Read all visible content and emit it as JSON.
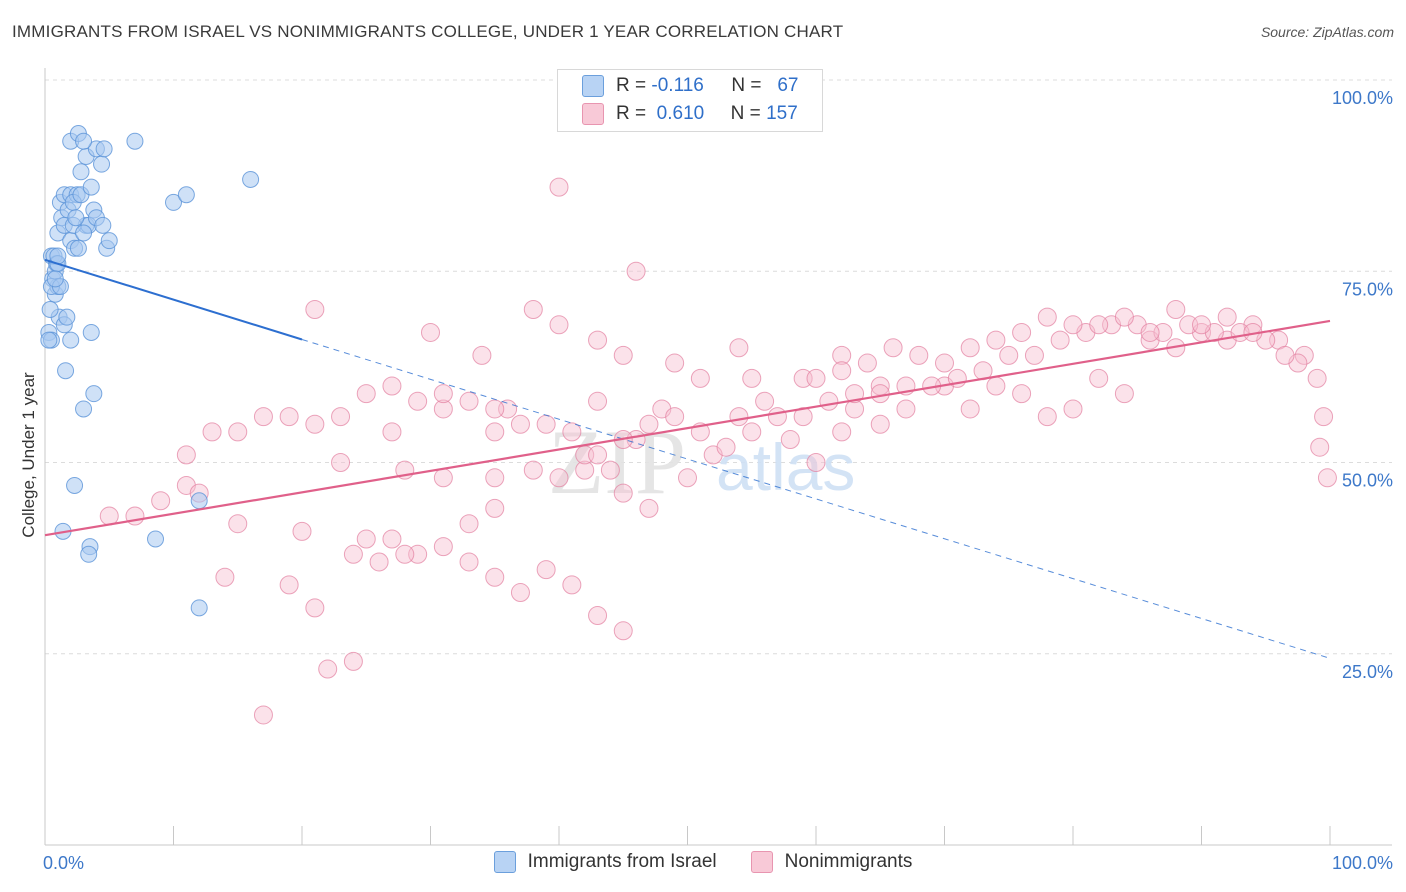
{
  "title": "IMMIGRANTS FROM ISRAEL VS NONIMMIGRANTS COLLEGE, UNDER 1 YEAR CORRELATION CHART",
  "source": "Source: ZipAtlas.com",
  "watermark": {
    "zip": "ZIP",
    "atlas": "atlas"
  },
  "legend_top": {
    "r_label": "R =",
    "n_label": "N =",
    "rows": [
      {
        "r": "-0.116",
        "n": "67"
      },
      {
        "r": "0.610",
        "n": "157"
      }
    ]
  },
  "colors": {
    "blue_fill": "#a8c8f0",
    "blue_stroke": "#5b93d8",
    "blue_line": "#2d6fd0",
    "pink_fill": "#f6bfd0",
    "pink_stroke": "#e27fa0",
    "pink_line": "#e0608a",
    "tick_label": "#3d78c9",
    "grid": "#dcdcdc"
  },
  "chart_data": {
    "type": "scatter",
    "ylabel": "College, Under 1 year",
    "x_tick_labels": [
      "0.0%",
      "100.0%"
    ],
    "y_tick_labels": [
      "100.0%",
      "75.0%",
      "50.0%",
      "25.0%"
    ],
    "xlim": [
      0,
      100
    ],
    "ylim": [
      0,
      100
    ],
    "series": [
      {
        "name": "Immigrants from Israel",
        "trend": {
          "x0": 0,
          "y0": 76.5,
          "x_solid_end": 20,
          "x1": 100,
          "y1": 24.4
        },
        "points": [
          [
            0.3,
            67
          ],
          [
            0.5,
            66
          ],
          [
            0.6,
            74
          ],
          [
            0.8,
            75
          ],
          [
            0.5,
            77
          ],
          [
            0.9,
            76
          ],
          [
            0.7,
            77
          ],
          [
            1,
            80
          ],
          [
            1.2,
            84
          ],
          [
            1.3,
            82
          ],
          [
            1.5,
            85
          ],
          [
            2,
            85
          ],
          [
            2.5,
            85
          ],
          [
            1.8,
            83
          ],
          [
            2.2,
            84
          ],
          [
            2.8,
            85
          ],
          [
            1.5,
            81
          ],
          [
            2,
            79
          ],
          [
            2.3,
            78
          ],
          [
            2.6,
            78
          ],
          [
            3.2,
            81
          ],
          [
            3.4,
            81
          ],
          [
            3.8,
            83
          ],
          [
            1,
            76
          ],
          [
            0.8,
            72
          ],
          [
            1,
            73
          ],
          [
            1.1,
            69
          ],
          [
            1.5,
            68
          ],
          [
            1.7,
            69
          ],
          [
            2,
            66
          ],
          [
            2.8,
            88
          ],
          [
            3.2,
            90
          ],
          [
            4,
            91
          ],
          [
            4.4,
            89
          ],
          [
            4.6,
            91
          ],
          [
            3.6,
            86
          ],
          [
            4.8,
            78
          ],
          [
            5,
            79
          ],
          [
            7,
            92
          ],
          [
            10,
            84
          ],
          [
            11,
            85
          ],
          [
            16,
            87
          ],
          [
            3.6,
            67
          ],
          [
            1.6,
            62
          ],
          [
            3,
            57
          ],
          [
            3.8,
            59
          ],
          [
            2.3,
            47
          ],
          [
            1.4,
            41
          ],
          [
            3.5,
            39
          ],
          [
            3.4,
            38
          ],
          [
            8.6,
            40
          ],
          [
            12,
            45
          ],
          [
            12,
            31
          ],
          [
            2,
            92
          ],
          [
            2.6,
            93
          ],
          [
            3,
            92
          ],
          [
            0.4,
            70
          ],
          [
            0.3,
            66
          ],
          [
            0.5,
            73
          ],
          [
            1,
            77
          ],
          [
            2.2,
            81
          ],
          [
            2.4,
            82
          ],
          [
            4,
            82
          ],
          [
            4.5,
            81
          ],
          [
            3,
            80
          ],
          [
            1.2,
            73
          ],
          [
            0.8,
            74
          ]
        ]
      },
      {
        "name": "Nonimmigrants",
        "trend": {
          "x0": 0,
          "y0": 40.5,
          "x1": 100,
          "y1": 68.5
        },
        "points": [
          [
            40,
            86
          ],
          [
            46,
            75
          ],
          [
            21,
            70
          ],
          [
            30,
            67
          ],
          [
            38,
            70
          ],
          [
            40,
            68
          ],
          [
            34,
            64
          ],
          [
            43,
            66
          ],
          [
            45,
            64
          ],
          [
            49,
            63
          ],
          [
            51,
            61
          ],
          [
            54,
            65
          ],
          [
            55,
            61
          ],
          [
            59,
            61
          ],
          [
            62,
            64
          ],
          [
            65,
            60
          ],
          [
            48,
            57
          ],
          [
            46,
            53
          ],
          [
            43,
            58
          ],
          [
            42,
            49
          ],
          [
            36,
            57
          ],
          [
            35,
            54
          ],
          [
            31,
            57
          ],
          [
            27,
            54
          ],
          [
            23,
            50
          ],
          [
            28,
            49
          ],
          [
            31,
            48
          ],
          [
            35,
            48
          ],
          [
            38,
            49
          ],
          [
            40,
            48
          ],
          [
            42,
            51
          ],
          [
            44,
            49
          ],
          [
            45,
            46
          ],
          [
            47,
            44
          ],
          [
            50,
            48
          ],
          [
            52,
            51
          ],
          [
            54,
            56
          ],
          [
            56,
            58
          ],
          [
            58,
            53
          ],
          [
            60,
            50
          ],
          [
            62,
            54
          ],
          [
            63,
            57
          ],
          [
            65,
            55
          ],
          [
            67,
            60
          ],
          [
            70,
            60
          ],
          [
            72,
            57
          ],
          [
            74,
            60
          ],
          [
            76,
            59
          ],
          [
            78,
            56
          ],
          [
            80,
            57
          ],
          [
            82,
            61
          ],
          [
            84,
            59
          ],
          [
            86,
            66
          ],
          [
            88,
            65
          ],
          [
            90,
            67
          ],
          [
            92,
            66
          ],
          [
            94,
            68
          ],
          [
            96,
            66
          ],
          [
            98,
            64
          ],
          [
            99,
            61
          ],
          [
            99.5,
            56
          ],
          [
            99.2,
            52
          ],
          [
            99.8,
            48
          ],
          [
            97.5,
            63
          ],
          [
            96.5,
            64
          ],
          [
            95,
            66
          ],
          [
            93,
            67
          ],
          [
            91,
            67
          ],
          [
            89,
            68
          ],
          [
            87,
            67
          ],
          [
            85,
            68
          ],
          [
            83,
            68
          ],
          [
            81,
            67
          ],
          [
            79,
            66
          ],
          [
            77,
            64
          ],
          [
            75,
            64
          ],
          [
            73,
            62
          ],
          [
            71,
            61
          ],
          [
            69,
            60
          ],
          [
            67,
            57
          ],
          [
            65,
            59
          ],
          [
            63,
            59
          ],
          [
            61,
            58
          ],
          [
            59,
            56
          ],
          [
            57,
            56
          ],
          [
            55,
            54
          ],
          [
            53,
            52
          ],
          [
            51,
            54
          ],
          [
            49,
            56
          ],
          [
            47,
            55
          ],
          [
            45,
            53
          ],
          [
            43,
            51
          ],
          [
            41,
            54
          ],
          [
            39,
            55
          ],
          [
            37,
            55
          ],
          [
            35,
            57
          ],
          [
            33,
            58
          ],
          [
            31,
            59
          ],
          [
            29,
            58
          ],
          [
            27,
            60
          ],
          [
            25,
            59
          ],
          [
            23,
            56
          ],
          [
            21,
            55
          ],
          [
            19,
            56
          ],
          [
            17,
            56
          ],
          [
            15,
            54
          ],
          [
            13,
            54
          ],
          [
            11,
            51
          ],
          [
            9,
            45
          ],
          [
            7,
            43
          ],
          [
            5,
            43
          ],
          [
            25,
            40
          ],
          [
            27,
            40
          ],
          [
            29,
            38
          ],
          [
            31,
            39
          ],
          [
            33,
            37
          ],
          [
            35,
            35
          ],
          [
            37,
            33
          ],
          [
            39,
            36
          ],
          [
            41,
            34
          ],
          [
            43,
            30
          ],
          [
            45,
            28
          ],
          [
            21,
            31
          ],
          [
            22,
            23
          ],
          [
            24,
            24
          ],
          [
            17,
            17
          ],
          [
            11,
            47
          ],
          [
            12,
            46
          ],
          [
            15,
            42
          ],
          [
            20,
            41
          ],
          [
            26,
            37
          ],
          [
            28,
            38
          ],
          [
            14,
            35
          ],
          [
            19,
            34
          ],
          [
            24,
            38
          ],
          [
            33,
            42
          ],
          [
            35,
            44
          ],
          [
            60,
            61
          ],
          [
            62,
            62
          ],
          [
            64,
            63
          ],
          [
            66,
            65
          ],
          [
            68,
            64
          ],
          [
            70,
            63
          ],
          [
            72,
            65
          ],
          [
            74,
            66
          ],
          [
            76,
            67
          ],
          [
            78,
            69
          ],
          [
            80,
            68
          ],
          [
            82,
            68
          ],
          [
            84,
            69
          ],
          [
            86,
            67
          ],
          [
            88,
            70
          ],
          [
            90,
            68
          ],
          [
            92,
            69
          ],
          [
            94,
            67
          ]
        ]
      }
    ]
  },
  "bottom_legend": [
    "Immigrants from Israel",
    "Nonimmigrants"
  ]
}
